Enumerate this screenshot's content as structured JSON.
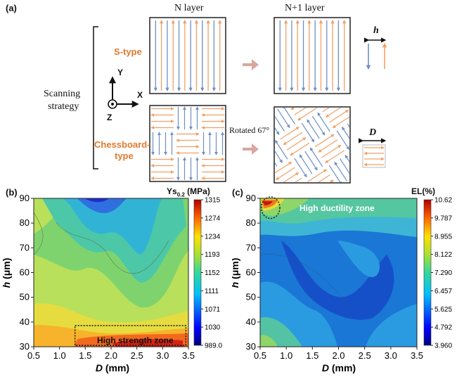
{
  "top": {
    "panel_label": "(a)",
    "col_n": "N layer",
    "col_n1": "N+1 layer",
    "row_s": "S-type",
    "row_c1": "Chessboard-",
    "row_c2": "type",
    "scan1": "Scanning",
    "scan2": "strategy",
    "axis_y": "Y",
    "axis_x": "X",
    "axis_z": "Z",
    "rotated": "Rotated 67°",
    "h_symbol": "h",
    "d_symbol": "D",
    "colors": {
      "blue": "#6e8fc4",
      "orange": "#f0a067",
      "dark": "#222222"
    }
  },
  "chart_data": [
    {
      "type": "heatmap",
      "panel_label": "(b)",
      "title": "Ys0.2 (MPa)",
      "title_main": "Ys",
      "title_sub": "0.2",
      "title_unit": " (MPa)",
      "xlabel": "D (mm)",
      "ylabel": "h (μm)",
      "xlim": [
        0.5,
        3.5
      ],
      "ylim": [
        30,
        90
      ],
      "x_ticks": [
        "0.5",
        "1.0",
        "1.5",
        "2.0",
        "2.5",
        "3.0",
        "3.5"
      ],
      "y_ticks": [
        "30",
        "40",
        "50",
        "60",
        "70",
        "80",
        "90"
      ],
      "colorbar_ticks": [
        "1315",
        "1274",
        "1234",
        "1193",
        "1152",
        "1111",
        "1071",
        "1030",
        "989.0"
      ],
      "colorbar_range": [
        989.0,
        1315
      ],
      "annotation": "High strength zone",
      "annotation_region": {
        "x": [
          1.3,
          3.45
        ],
        "y": [
          30,
          38
        ]
      }
    },
    {
      "type": "heatmap",
      "panel_label": "(c)",
      "title": "EL(%)",
      "xlabel": "D (mm)",
      "ylabel": "h (μm)",
      "xlim": [
        0.5,
        3.5
      ],
      "ylim": [
        30,
        90
      ],
      "x_ticks": [
        "0.5",
        "1.0",
        "1.5",
        "2.0",
        "2.5",
        "3.0",
        "3.5"
      ],
      "y_ticks": [
        "30",
        "40",
        "50",
        "60",
        "70",
        "80",
        "90"
      ],
      "colorbar_ticks": [
        "10.62",
        "9.787",
        "8.955",
        "8.122",
        "7.290",
        "6.457",
        "5.625",
        "4.792",
        "3.960"
      ],
      "colorbar_range": [
        3.96,
        10.62
      ],
      "annotation": "High ductility zone",
      "annotation_region": {
        "x": [
          0.55,
          0.85
        ],
        "y": [
          83,
          90
        ]
      }
    }
  ]
}
